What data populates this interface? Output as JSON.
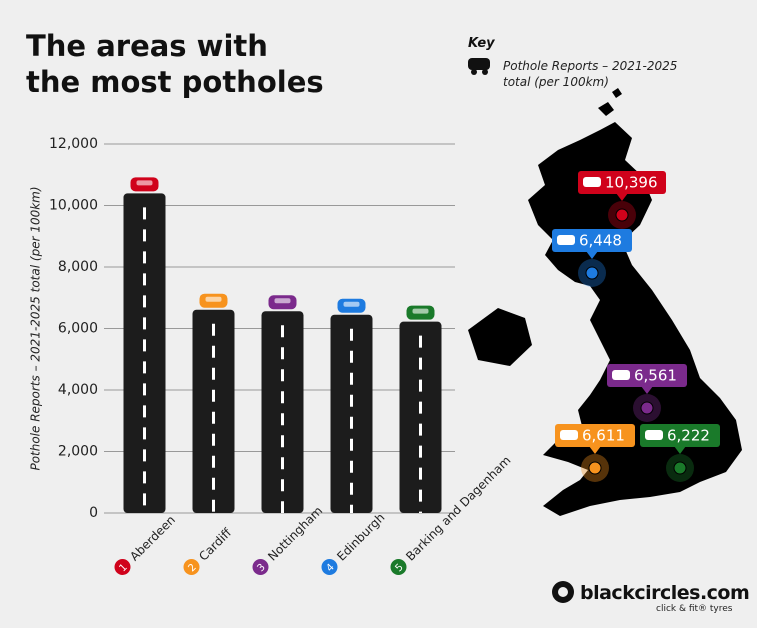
{
  "chart_data": {
    "type": "bar",
    "title": "The areas with the most potholes",
    "key_title": "Key",
    "key_label": "Pothole Reports – 2021-2025 total (per 100km)",
    "y_label": "Pothole Reports – 2021-2025 total (per 100km)",
    "categories": [
      "Aberdeen",
      "Cardiff",
      "Nottingham",
      "Edinburgh",
      "Barking and Dagenham"
    ],
    "ranks": [
      1,
      2,
      3,
      4,
      5
    ],
    "values": [
      10396,
      6611,
      6561,
      6448,
      6222
    ],
    "value_labels": [
      "10,396",
      "6,611",
      "6,561",
      "6,448",
      "6,222"
    ],
    "colors": [
      "#d0021b",
      "#f7931e",
      "#7b2a8c",
      "#1e7be0",
      "#1a7a2a"
    ],
    "ylim": [
      0,
      12000
    ],
    "yticks": [
      0,
      {
        "value": 2000,
        "label": "2,000"
      },
      {
        "value": 4000,
        "label": "4,000"
      },
      {
        "value": 6000,
        "label": "6,000"
      },
      {
        "value": 8000,
        "label": "8,000"
      },
      {
        "value": 10000,
        "label": "10,000"
      },
      {
        "value": 12000,
        "label": "12,000"
      }
    ],
    "grid": true,
    "brand": "blackcircles.com",
    "tagline": "click & fit® tyres"
  }
}
